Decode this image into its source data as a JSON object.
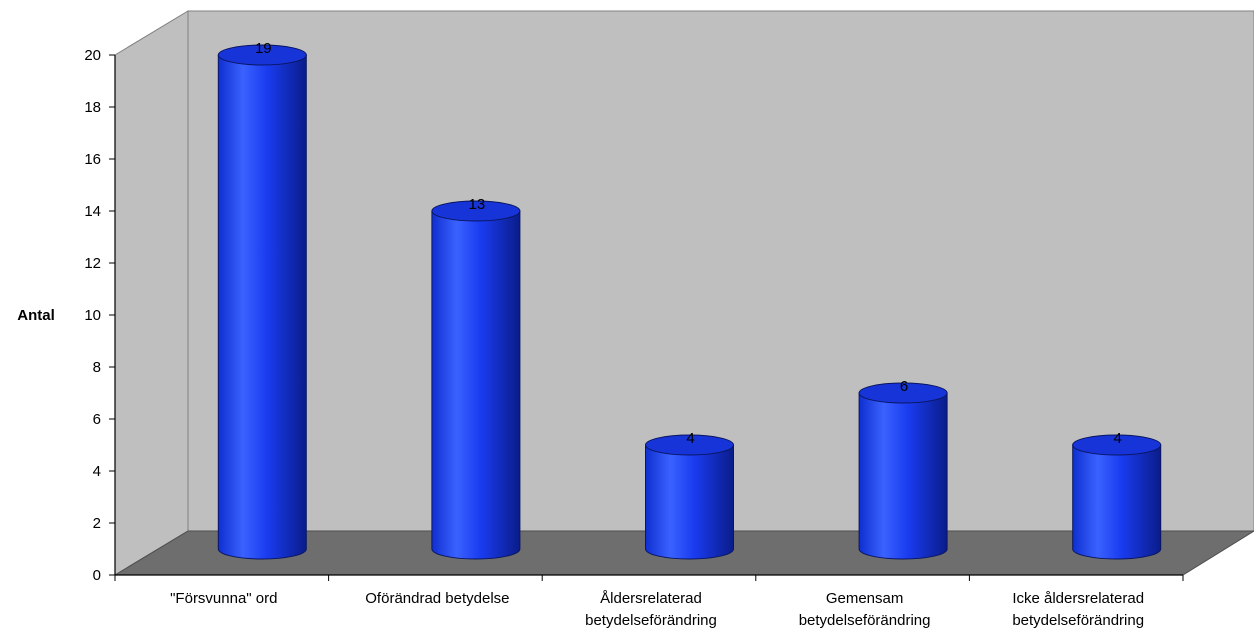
{
  "chart_data": {
    "type": "bar",
    "style": "3d-cylinder",
    "categories": [
      "\"Försvunna\" ord",
      "Oförändrad betydelse",
      "Åldersrelaterad betydelseförändring",
      "Gemensam betydelseförändring",
      "Icke åldersrelaterad betydelseförändring"
    ],
    "values": [
      19,
      13,
      4,
      6,
      4
    ],
    "data_labels": [
      "19",
      "13",
      "4",
      "6",
      "4"
    ],
    "ylabel": "Antal",
    "ylim": [
      0,
      20
    ],
    "yticks": [
      "0",
      "2",
      "4",
      "6",
      "8",
      "10",
      "12",
      "14",
      "16",
      "18",
      "20"
    ],
    "grid": false,
    "legend": "none",
    "colors": {
      "bar": "#1a3cf0",
      "bar_dark": "#0a1f9a",
      "bar_top": "#1634d8",
      "wall": "#bfbfbf",
      "floor": "#6e6e6e"
    }
  }
}
